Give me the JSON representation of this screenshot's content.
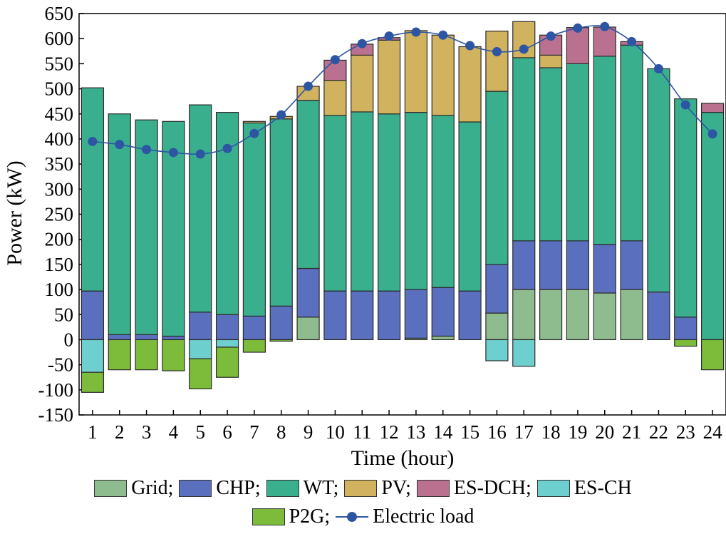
{
  "chart_data": {
    "type": "bar",
    "stacked": true,
    "xlabel": "Time (hour)",
    "ylabel": "Power (kW)",
    "categories": [
      "1",
      "2",
      "3",
      "4",
      "5",
      "6",
      "7",
      "8",
      "9",
      "10",
      "11",
      "12",
      "13",
      "14",
      "15",
      "16",
      "17",
      "18",
      "19",
      "20",
      "21",
      "22",
      "23",
      "24"
    ],
    "ylim": [
      -150,
      650
    ],
    "yticks": [
      650,
      600,
      550,
      500,
      450,
      400,
      350,
      300,
      250,
      200,
      150,
      100,
      50,
      0,
      -50,
      -100,
      -150
    ],
    "grid": false,
    "legend_position": "bottom",
    "series": [
      {
        "name": "Grid",
        "color": "#8fbc8f",
        "values": [
          0,
          0,
          0,
          0,
          0,
          0,
          0,
          0,
          45,
          0,
          0,
          0,
          3,
          7,
          0,
          53,
          100,
          100,
          100,
          93,
          100,
          0,
          0,
          0
        ]
      },
      {
        "name": "CHP",
        "color": "#5b6fbf",
        "values": [
          97,
          10,
          10,
          7,
          55,
          50,
          47,
          67,
          97,
          97,
          97,
          97,
          97,
          97,
          97,
          97,
          97,
          97,
          97,
          97,
          97,
          95,
          45,
          0
        ]
      },
      {
        "name": "WT",
        "color": "#3aaf8e",
        "values": [
          405,
          440,
          428,
          428,
          413,
          403,
          385,
          373,
          335,
          350,
          357,
          353,
          353,
          343,
          337,
          345,
          365,
          345,
          353,
          375,
          390,
          445,
          435,
          453
        ]
      },
      {
        "name": "PV",
        "color": "#d1b25e",
        "values": [
          0,
          0,
          0,
          0,
          0,
          0,
          3,
          5,
          28,
          70,
          113,
          147,
          163,
          160,
          150,
          120,
          72,
          25,
          0,
          0,
          0,
          0,
          0,
          0
        ]
      },
      {
        "name": "ES-DCH",
        "color": "#b9718f",
        "values": [
          0,
          0,
          0,
          0,
          0,
          0,
          0,
          0,
          0,
          40,
          22,
          5,
          0,
          0,
          0,
          0,
          0,
          40,
          72,
          58,
          7,
          0,
          0,
          18
        ]
      },
      {
        "name": "ES-CH",
        "color": "#6ecfcf",
        "values": [
          -65,
          0,
          0,
          0,
          -38,
          -15,
          0,
          0,
          0,
          0,
          0,
          0,
          0,
          0,
          0,
          -42,
          -53,
          0,
          0,
          0,
          0,
          0,
          0,
          0
        ]
      },
      {
        "name": "P2G",
        "color": "#7cbc3a",
        "values": [
          -40,
          -60,
          -60,
          -62,
          -60,
          -60,
          -25,
          -3,
          0,
          0,
          0,
          0,
          0,
          0,
          0,
          0,
          0,
          0,
          0,
          0,
          0,
          0,
          -13,
          -60
        ]
      }
    ],
    "line_series": {
      "name": "Electric load",
      "color": "#2d55a3",
      "values": [
        395,
        389,
        379,
        373,
        370,
        381,
        411,
        448,
        505,
        558,
        590,
        605,
        613,
        607,
        586,
        574,
        579,
        605,
        621,
        624,
        594,
        540,
        468,
        410
      ]
    }
  },
  "legend": {
    "row1": [
      {
        "label": "Grid;",
        "series": "Grid"
      },
      {
        "label": "CHP;",
        "series": "CHP"
      },
      {
        "label": "WT;",
        "series": "WT"
      },
      {
        "label": "PV;",
        "series": "PV"
      },
      {
        "label": "ES-DCH;",
        "series": "ES-DCH"
      },
      {
        "label": "ES-CH",
        "series": "ES-CH"
      }
    ],
    "row2": [
      {
        "label": "P2G;",
        "series": "P2G"
      },
      {
        "label": "Electric load",
        "series": "Electric load"
      }
    ]
  }
}
